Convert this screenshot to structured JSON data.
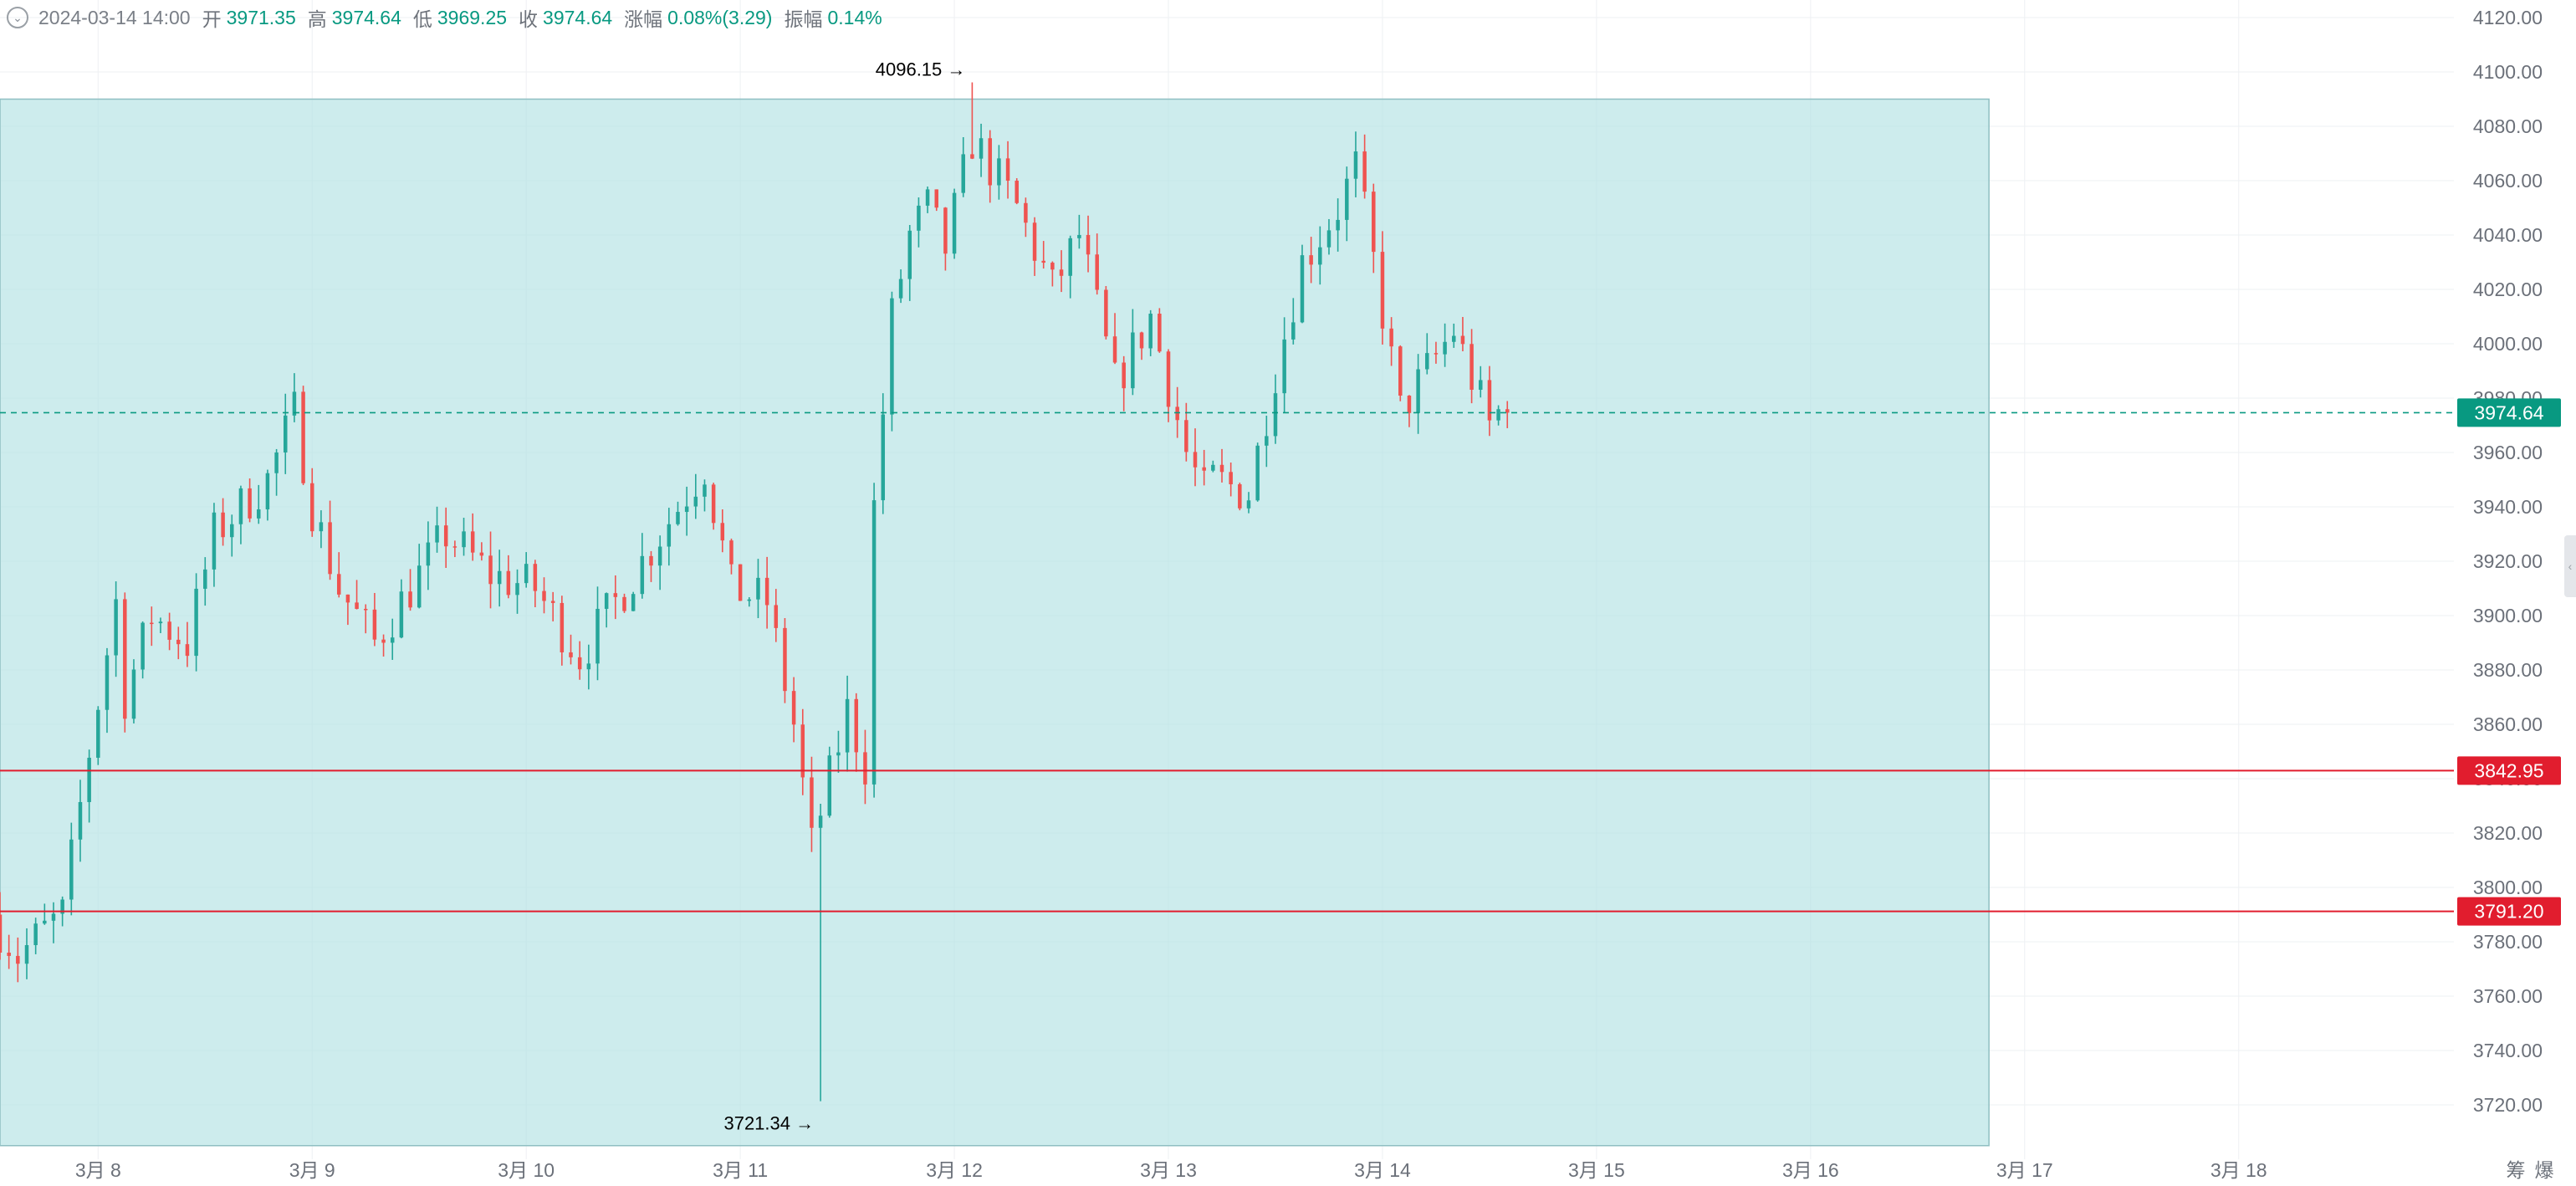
{
  "header": {
    "timestamp": "2024-03-14 14:00",
    "open_label": "开",
    "open": "3971.35",
    "high_label": "高",
    "high": "3974.64",
    "low_label": "低",
    "low": "3969.25",
    "close_label": "收",
    "close": "3974.64",
    "change_label": "涨幅",
    "change": "0.08%(3.29)",
    "amplitude_label": "振幅",
    "amplitude": "0.14%"
  },
  "colors": {
    "up": "#26a69a",
    "down": "#ef5350",
    "zone_fill": "#b2e2e4",
    "line_red": "#e11d2e",
    "current_price": "#089981",
    "axis_text": "#6b7079",
    "grid": "#eef0f3"
  },
  "icons": {
    "ohlc_toggle": "chevron-down-icon",
    "scale_handle": "chevron-left-icon"
  },
  "chart_data": {
    "type": "candlestick",
    "timeframe": "hourly",
    "x_range": [
      "2024-03-07 13:00",
      "2024-03-18 23:00"
    ],
    "ylim": [
      3705,
      4125
    ],
    "y_ticks": [
      "3720.00",
      "3740.00",
      "3760.00",
      "3780.00",
      "3800.00",
      "3820.00",
      "3840.00",
      "3860.00",
      "3880.00",
      "3900.00",
      "3920.00",
      "3940.00",
      "3960.00",
      "3980.00",
      "4000.00",
      "4020.00",
      "4040.00",
      "4060.00",
      "4080.00",
      "4100.00",
      "4120.00"
    ],
    "x_ticks": [
      {
        "label": "3月 8",
        "time": "2024-03-08 00:00"
      },
      {
        "label": "3月 9",
        "time": "2024-03-09 00:00"
      },
      {
        "label": "3月 10",
        "time": "2024-03-10 00:00"
      },
      {
        "label": "3月 11",
        "time": "2024-03-11 00:00"
      },
      {
        "label": "3月 12",
        "time": "2024-03-12 00:00"
      },
      {
        "label": "3月 13",
        "time": "2024-03-13 00:00"
      },
      {
        "label": "3月 14",
        "time": "2024-03-14 00:00"
      },
      {
        "label": "3月 15",
        "time": "2024-03-15 00:00"
      },
      {
        "label": "3月 16",
        "time": "2024-03-16 00:00"
      },
      {
        "label": "3月 17",
        "time": "2024-03-17 00:00"
      },
      {
        "label": "3月 18",
        "time": "2024-03-18 00:00"
      }
    ],
    "corner_labels": [
      "筹",
      "爆"
    ],
    "highlight_zone": {
      "start": "2024-03-07 13:00",
      "end": "2024-03-16 20:00",
      "low": 3705,
      "high": 4090
    },
    "current_price": {
      "value": 3974.64,
      "label": "3974.64"
    },
    "horizontal_lines": [
      {
        "value": 3842.95,
        "label": "3842.95"
      },
      {
        "value": 3791.2,
        "label": "3791.20"
      }
    ],
    "annotations": [
      {
        "text": "4096.15 →",
        "time": "2024-03-12 02:00",
        "value": 4096.15,
        "position": "above"
      },
      {
        "text": "3721.34 →",
        "time": "2024-03-11 09:00",
        "value": 3721.34,
        "position": "below"
      }
    ],
    "series": [
      {
        "name": "",
        "anchors": [
          {
            "time": "2024-03-07 13:00",
            "price": 3790
          },
          {
            "time": "2024-03-07 16:00",
            "price": 3775
          },
          {
            "time": "2024-03-07 21:00",
            "price": 3790
          },
          {
            "time": "2024-03-08 00:00",
            "price": 3850
          },
          {
            "time": "2024-03-08 03:00",
            "price": 3905
          },
          {
            "time": "2024-03-08 04:00",
            "price": 3870
          },
          {
            "time": "2024-03-08 07:00",
            "price": 3900
          },
          {
            "time": "2024-03-08 11:00",
            "price": 3890
          },
          {
            "time": "2024-03-08 14:00",
            "price": 3930
          },
          {
            "time": "2024-03-08 20:00",
            "price": 3950
          },
          {
            "time": "2024-03-08 23:00",
            "price": 3975
          },
          {
            "time": "2024-03-09 01:00",
            "price": 3940
          },
          {
            "time": "2024-03-09 04:00",
            "price": 3910
          },
          {
            "time": "2024-03-09 08:00",
            "price": 3890
          },
          {
            "time": "2024-03-09 12:00",
            "price": 3910
          },
          {
            "time": "2024-03-09 16:00",
            "price": 3930
          },
          {
            "time": "2024-03-09 21:00",
            "price": 3915
          },
          {
            "time": "2024-03-10 02:00",
            "price": 3910
          },
          {
            "time": "2024-03-10 07:00",
            "price": 3885
          },
          {
            "time": "2024-03-10 14:00",
            "price": 3920
          },
          {
            "time": "2024-03-10 18:00",
            "price": 3940
          },
          {
            "time": "2024-03-10 21:00",
            "price": 3955
          },
          {
            "time": "2024-03-11 00:00",
            "price": 3910
          },
          {
            "time": "2024-03-11 04:00",
            "price": 3905
          },
          {
            "time": "2024-03-11 07:00",
            "price": 3860
          },
          {
            "time": "2024-03-11 09:00",
            "price": 3815
          },
          {
            "time": "2024-03-11 13:00",
            "price": 3865
          },
          {
            "time": "2024-03-11 15:00",
            "price": 3845
          },
          {
            "time": "2024-03-11 16:00",
            "price": 3940
          },
          {
            "time": "2024-03-11 18:00",
            "price": 4010
          },
          {
            "time": "2024-03-11 20:00",
            "price": 4040
          },
          {
            "time": "2024-03-11 22:00",
            "price": 4050
          },
          {
            "time": "2024-03-12 00:00",
            "price": 4035
          },
          {
            "time": "2024-03-12 03:00",
            "price": 4075
          },
          {
            "time": "2024-03-12 08:00",
            "price": 4050
          },
          {
            "time": "2024-03-12 12:00",
            "price": 4020
          },
          {
            "time": "2024-03-12 15:00",
            "price": 4040
          },
          {
            "time": "2024-03-12 19:00",
            "price": 3985
          },
          {
            "time": "2024-03-12 23:00",
            "price": 4010
          },
          {
            "time": "2024-03-13 03:00",
            "price": 3960
          },
          {
            "time": "2024-03-13 05:00",
            "price": 3945
          },
          {
            "time": "2024-03-13 06:00",
            "price": 3950
          },
          {
            "time": "2024-03-13 10:00",
            "price": 3945
          },
          {
            "time": "2024-03-13 13:00",
            "price": 3990
          },
          {
            "time": "2024-03-13 16:00",
            "price": 4030
          },
          {
            "time": "2024-03-13 20:00",
            "price": 4050
          },
          {
            "time": "2024-03-13 22:00",
            "price": 4065
          },
          {
            "time": "2024-03-14 00:00",
            "price": 4030
          },
          {
            "time": "2024-03-14 03:00",
            "price": 3975
          },
          {
            "time": "2024-03-14 06:00",
            "price": 3990
          },
          {
            "time": "2024-03-14 09:00",
            "price": 4005
          },
          {
            "time": "2024-03-14 13:00",
            "price": 3970
          },
          {
            "time": "2024-03-14 14:00",
            "price": 3974.64
          }
        ]
      }
    ]
  }
}
